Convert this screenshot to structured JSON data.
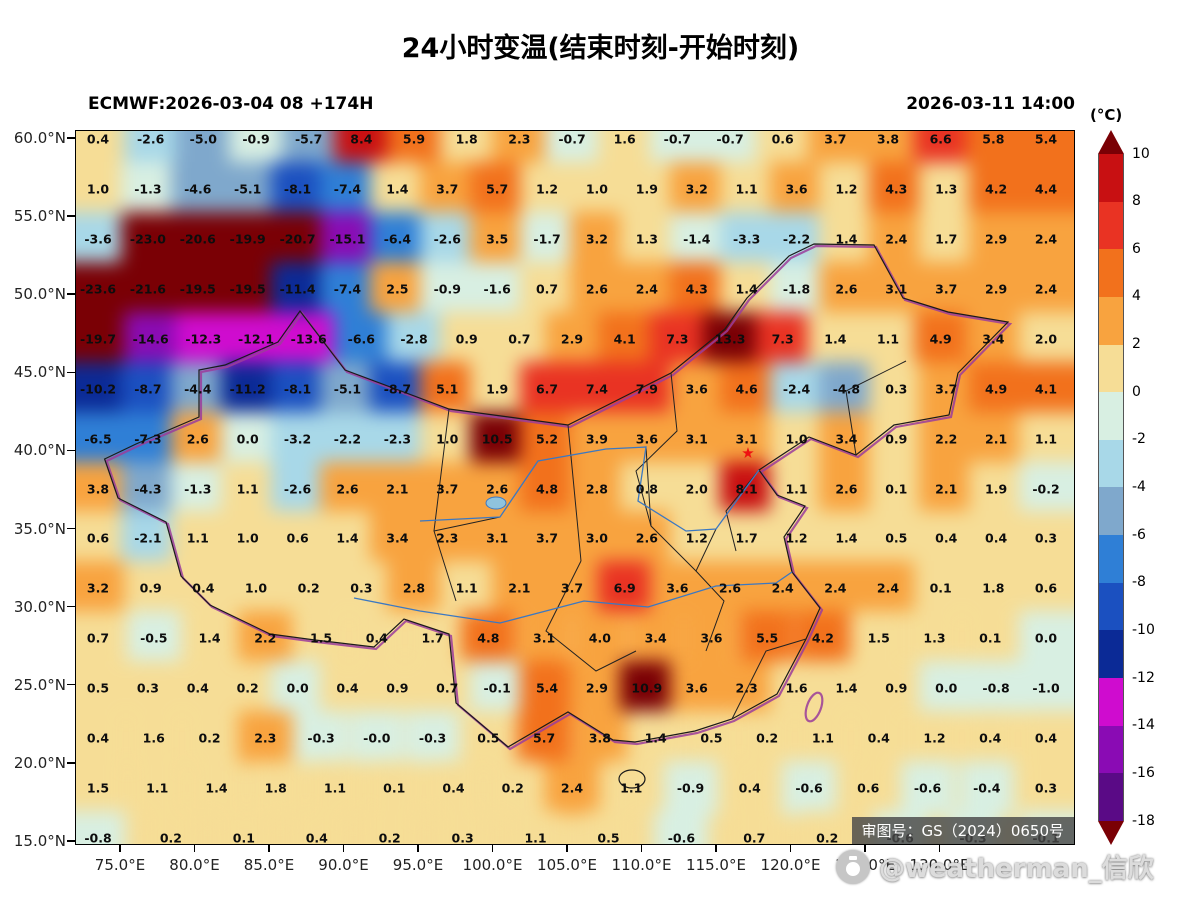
{
  "title": "24小时变温(结束时刻-开始时刻)",
  "header": {
    "left": "ECMWF:2026-03-04 08 +174H",
    "right": "2026-03-11 14:00"
  },
  "watermark": {
    "license": "审图号：GS（2024）0650号",
    "author": "@weatherman_信欣"
  },
  "colorbar": {
    "title": "(°C)",
    "tick_labels": [
      "10",
      "8",
      "6",
      "4",
      "2",
      "0",
      "-2",
      "-4",
      "-6",
      "-8",
      "-10",
      "-12",
      "-14",
      "-16",
      "-18"
    ],
    "segment_colors": [
      "#7a0005",
      "#c81012",
      "#e93323",
      "#f2711c",
      "#f8a33f",
      "#f6dd96",
      "#d8efe2",
      "#a8d8e8",
      "#7fa8cc",
      "#2f7fd6",
      "#1b50c0",
      "#0b2a96",
      "#cf0ccf",
      "#8a0bb4",
      "#5a0a86",
      "#7a0005"
    ]
  },
  "chart_data": {
    "type": "heatmap",
    "title": "24小时变温(结束时刻-开始时刻)",
    "units": "°C",
    "legend_position": "right",
    "y_axis": {
      "labels": [
        "60.0°N",
        "55.0°N",
        "50.0°N",
        "45.0°N",
        "40.0°N",
        "35.0°N",
        "30.0°N",
        "25.0°N",
        "20.0°N",
        "15.0°N"
      ]
    },
    "x_axis": {
      "labels": [
        "75.0°E",
        "80.0°E",
        "85.0°E",
        "90.0°E",
        "95.0°E",
        "100.0°E",
        "105.0°E",
        "110.0°E",
        "115.0°E",
        "120.0°E",
        "125.0°E",
        "130.0°E"
      ]
    },
    "value_color_thresholds": [
      10,
      8,
      6,
      4,
      2,
      0,
      -2,
      -4,
      -6,
      -8,
      -10,
      -12,
      -14,
      -16,
      -18
    ],
    "grid_rows": [
      [
        "0.4",
        "-2.6",
        "-5.0",
        "-0.9",
        "-5.7",
        "8.4",
        "5.9",
        "1.8",
        "2.3",
        "-0.7",
        "1.6",
        "-0.7",
        "-0.7",
        "0.6",
        "3.7",
        "3.8",
        "6.6",
        "5.8",
        "5.4"
      ],
      [
        "1.0",
        "-1.3",
        "-4.6",
        "-5.1",
        "-8.1",
        "-7.4",
        "1.4",
        "3.7",
        "5.7",
        "1.2",
        "1.0",
        "1.9",
        "3.2",
        "1.1",
        "3.6",
        "1.2",
        "4.3",
        "1.3",
        "4.2",
        "4.4"
      ],
      [
        "-3.6",
        "-23.0",
        "-20.6",
        "-19.9",
        "-20.7",
        "-15.1",
        "-6.4",
        "-2.6",
        "3.5",
        "-1.7",
        "3.2",
        "1.3",
        "-1.4",
        "-3.3",
        "-2.2",
        "1.4",
        "2.4",
        "1.7",
        "2.9",
        "2.4"
      ],
      [
        "-23.6",
        "-21.6",
        "-19.5",
        "-19.5",
        "-11.4",
        "-7.4",
        "2.5",
        "-0.9",
        "-1.6",
        "0.7",
        "2.6",
        "2.4",
        "4.3",
        "1.4",
        "-1.8",
        "2.6",
        "3.1",
        "3.7",
        "2.9",
        "2.4"
      ],
      [
        "-19.7",
        "-14.6",
        "-12.3",
        "-12.1",
        "-13.6",
        "-6.6",
        "-2.8",
        "0.9",
        "0.7",
        "2.9",
        "4.1",
        "7.3",
        "13.3",
        "7.3",
        "1.4",
        "1.1",
        "4.9",
        "3.4",
        "2.0"
      ],
      [
        "-10.2",
        "-8.7",
        "-4.4",
        "-11.2",
        "-8.1",
        "-5.1",
        "-8.7",
        "5.1",
        "1.9",
        "6.7",
        "7.4",
        "7.9",
        "3.6",
        "4.6",
        "-2.4",
        "-4.8",
        "0.3",
        "3.7",
        "4.9",
        "4.1"
      ],
      [
        "-6.5",
        "-7.3",
        "2.6",
        "0.0",
        "-3.2",
        "-2.2",
        "-2.3",
        "1.0",
        "10.5",
        "5.2",
        "3.9",
        "3.6",
        "3.1",
        "3.1",
        "1.0",
        "3.4",
        "0.9",
        "2.2",
        "2.1",
        "1.1"
      ],
      [
        "3.8",
        "-4.3",
        "-1.3",
        "1.1",
        "-2.6",
        "2.6",
        "2.1",
        "3.7",
        "2.6",
        "4.8",
        "2.8",
        "0.8",
        "2.0",
        "8.1",
        "1.1",
        "2.6",
        "0.1",
        "2.1",
        "1.9",
        "-0.2"
      ],
      [
        "0.6",
        "-2.1",
        "1.1",
        "1.0",
        "0.6",
        "1.4",
        "3.4",
        "2.3",
        "3.1",
        "3.7",
        "3.0",
        "2.6",
        "1.2",
        "1.7",
        "1.2",
        "1.4",
        "0.5",
        "0.4",
        "0.4",
        "0.3"
      ],
      [
        "3.2",
        "0.9",
        "0.4",
        "1.0",
        "0.2",
        "0.3",
        "2.8",
        "1.1",
        "2.1",
        "3.7",
        "6.9",
        "3.6",
        "2.6",
        "2.4",
        "2.4",
        "2.4",
        "0.1",
        "1.8",
        "0.6"
      ],
      [
        "0.7",
        "-0.5",
        "1.4",
        "2.2",
        "1.5",
        "0.4",
        "1.7",
        "4.8",
        "3.1",
        "4.0",
        "3.4",
        "3.6",
        "5.5",
        "4.2",
        "1.5",
        "1.3",
        "0.1",
        "0.0"
      ],
      [
        "0.5",
        "0.3",
        "0.4",
        "0.2",
        "0.0",
        "0.4",
        "0.9",
        "0.7",
        "-0.1",
        "5.4",
        "2.9",
        "10.9",
        "3.6",
        "2.3",
        "1.6",
        "1.4",
        "0.9",
        "0.0",
        "-0.8",
        "-1.0"
      ],
      [
        "0.4",
        "1.6",
        "0.2",
        "2.3",
        "-0.3",
        "-0.0",
        "-0.3",
        "0.5",
        "5.7",
        "3.8",
        "1.4",
        "0.5",
        "0.2",
        "1.1",
        "0.4",
        "1.2",
        "0.4",
        "0.4"
      ],
      [
        "1.5",
        "1.1",
        "1.4",
        "1.8",
        "1.1",
        "0.1",
        "0.4",
        "0.2",
        "2.4",
        "1.1",
        "-0.9",
        "0.4",
        "-0.6",
        "0.6",
        "-0.6",
        "-0.4",
        "0.3"
      ],
      [
        "-0.8",
        "0.2",
        "0.1",
        "0.4",
        "0.2",
        "0.3",
        "1.1",
        "0.5",
        "-0.6",
        "0.7",
        "0.2",
        "-0.6",
        "-0.3",
        "-0.1"
      ]
    ],
    "marker": {
      "label": "beijing-star",
      "glyph": "★",
      "color": "#ee1111"
    }
  }
}
